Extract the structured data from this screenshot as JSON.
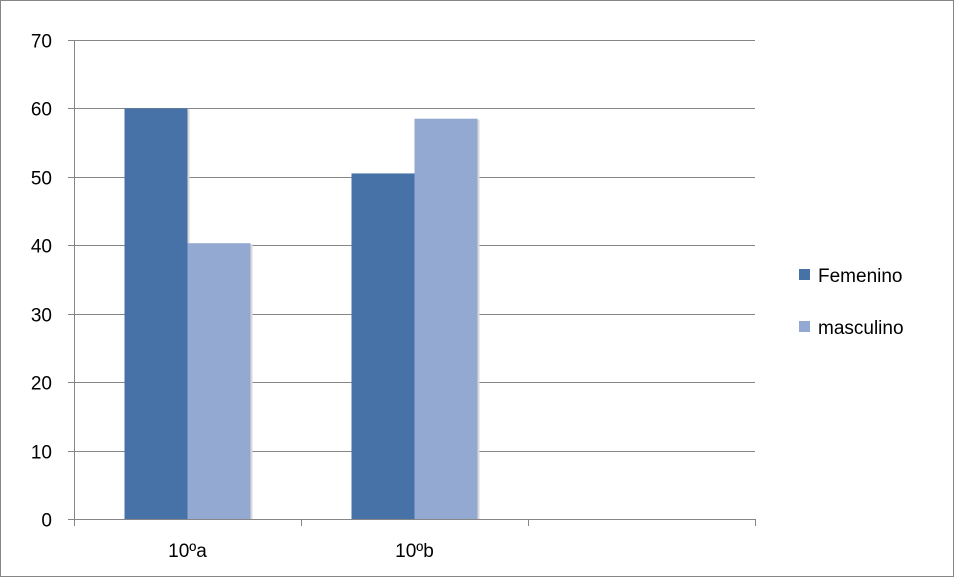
{
  "chart_data": {
    "type": "bar",
    "categories": [
      "10ºa",
      "10ºb",
      ""
    ],
    "series": [
      {
        "name": "Femenino",
        "values": [
          60,
          50.5,
          null
        ],
        "color": "#4672A8"
      },
      {
        "name": "masculino",
        "values": [
          40.3,
          58.5,
          null
        ],
        "color": "#94A9D1"
      }
    ],
    "title": "",
    "xlabel": "",
    "ylabel": "",
    "ylim": [
      0,
      70
    ],
    "yticks": [
      0,
      10,
      20,
      30,
      40,
      50,
      60,
      70
    ],
    "grid": true,
    "legend_position": "right"
  }
}
